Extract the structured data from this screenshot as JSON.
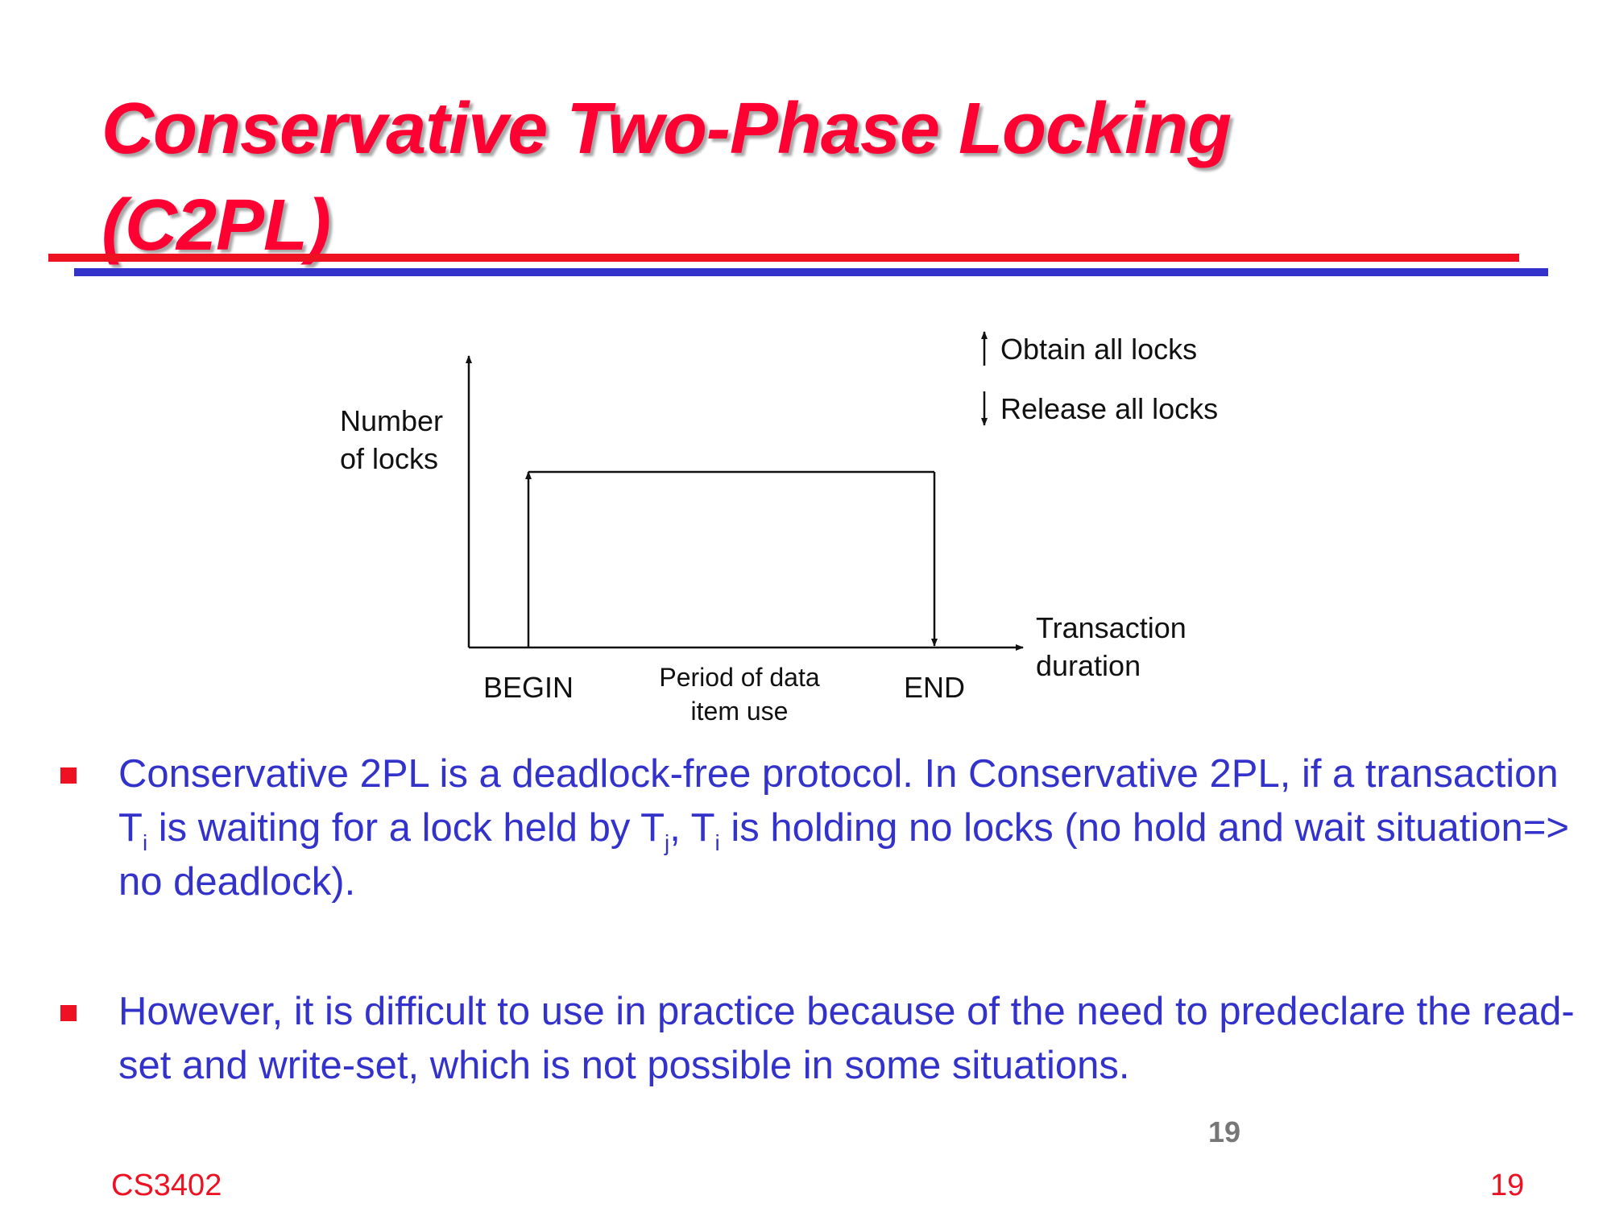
{
  "slide": {
    "title_line1": "Conservative Two-Phase Locking",
    "title_line2": "(C2PL)"
  },
  "diagram": {
    "y_axis_label": [
      "Number",
      "of locks"
    ],
    "x_axis_label": [
      "Transaction",
      "duration"
    ],
    "begin_label": "BEGIN",
    "end_label": "END",
    "period_label": [
      "Period of data",
      "item use"
    ],
    "legend": {
      "obtain": "Obtain all locks",
      "release": "Release all locks"
    }
  },
  "bullets": {
    "b1": {
      "p1": "Conservative 2PL is a deadlock-free protocol. In Conservative 2PL, if a transaction T",
      "s1": "i",
      "p2": " is waiting for a lock held by T",
      "s2": "j",
      "p3": ", T",
      "s3": "i",
      "p4": " is holding no locks (no hold and wait situation=> no deadlock)."
    },
    "b2": {
      "text": "However, it is difficult to use in practice because of the need to predeclare the read-set and write-set, which is not possible in some situations."
    }
  },
  "footer": {
    "inner_page": "19",
    "course": "CS3402",
    "page": "19"
  }
}
